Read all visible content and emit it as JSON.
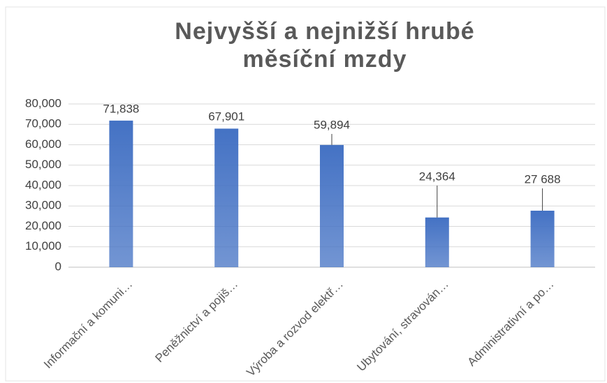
{
  "chart_data": {
    "type": "bar",
    "title": [
      "Nejvyšší a nejnižší hrubé",
      "měsíční mzdy"
    ],
    "categories": [
      "Informační a komuni…",
      "Peněžnictví a pojiš…",
      "Výroba a rozvod elektř…",
      "Ubytování, stravován…",
      "Administrativní a po…"
    ],
    "values": [
      71838,
      67901,
      59894,
      24364,
      27688
    ],
    "value_labels": [
      "71,838",
      "67,901",
      "59,894",
      "24,364",
      "27 688"
    ],
    "color": "#4472c4",
    "ylim": [
      0,
      80000
    ],
    "yticks": [
      0,
      {
        "value": 10000,
        "label": "10,000"
      },
      {
        "value": 20000,
        "label": "20,000"
      },
      {
        "value": 30000,
        "label": "30,000"
      },
      {
        "value": 40000,
        "label": "40,000"
      },
      {
        "value": 50000,
        "label": "50,000"
      },
      {
        "value": 60000,
        "label": "60,000"
      },
      {
        "value": 70000,
        "label": "70,000"
      },
      {
        "value": 80000,
        "label": "80,000"
      }
    ],
    "grid": true
  }
}
